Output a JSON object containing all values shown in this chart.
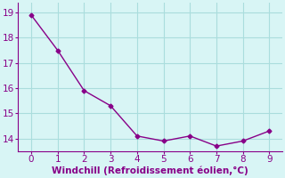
{
  "x": [
    0,
    1,
    2,
    3,
    4,
    5,
    6,
    7,
    8,
    9
  ],
  "y": [
    18.9,
    17.5,
    15.9,
    15.3,
    14.1,
    13.9,
    14.1,
    13.7,
    13.9,
    14.3
  ],
  "line_color": "#880088",
  "marker": "D",
  "marker_size": 2.5,
  "line_width": 1.0,
  "xlabel": "Windchill (Refroidissement éolien,°C)",
  "xlabel_fontsize": 7.5,
  "yticks": [
    14,
    15,
    16,
    17,
    18,
    19
  ],
  "xticks": [
    0,
    1,
    2,
    3,
    4,
    5,
    6,
    7,
    8,
    9
  ],
  "xlim": [
    -0.5,
    9.5
  ],
  "ylim": [
    13.5,
    19.4
  ],
  "background_color": "#d8f5f5",
  "grid_color": "#aadddd",
  "tick_fontsize": 7.5,
  "tick_color": "#880088",
  "label_color": "#880088"
}
